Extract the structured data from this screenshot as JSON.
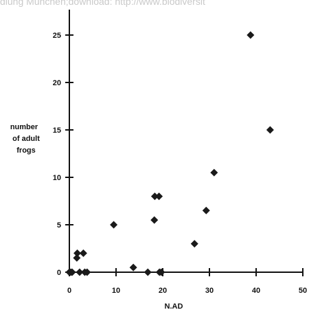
{
  "watermark": "dlung München;download: http://www.biodiversit",
  "chart_data": {
    "type": "scatter",
    "title": "",
    "xlabel": "N.AD",
    "ylabel_lines": [
      "number",
      "of adult",
      "frogs"
    ],
    "xlim": [
      0,
      50
    ],
    "ylim": [
      0,
      27
    ],
    "x_ticks": [
      0,
      10,
      20,
      30,
      40,
      50
    ],
    "y_ticks": [
      0,
      5,
      10,
      15,
      20,
      25
    ],
    "grid": false,
    "marker": "diamond",
    "marker_color": "#1a1a1a",
    "points": [
      {
        "x": 0,
        "y": 0
      },
      {
        "x": 0.3,
        "y": 0
      },
      {
        "x": 0.6,
        "y": 0
      },
      {
        "x": 1.6,
        "y": 1.5
      },
      {
        "x": 1.7,
        "y": 2
      },
      {
        "x": 2.2,
        "y": 0
      },
      {
        "x": 3.0,
        "y": 2
      },
      {
        "x": 3.3,
        "y": 0
      },
      {
        "x": 3.8,
        "y": 0
      },
      {
        "x": 9.5,
        "y": 5
      },
      {
        "x": 13.7,
        "y": 0.5
      },
      {
        "x": 16.8,
        "y": 0
      },
      {
        "x": 18.2,
        "y": 5.5
      },
      {
        "x": 18.3,
        "y": 8
      },
      {
        "x": 19.2,
        "y": 8
      },
      {
        "x": 19.3,
        "y": 0
      },
      {
        "x": 19.7,
        "y": 0
      },
      {
        "x": 26.8,
        "y": 3
      },
      {
        "x": 29.3,
        "y": 6.5
      },
      {
        "x": 31.0,
        "y": 10.5
      },
      {
        "x": 38.8,
        "y": 25
      },
      {
        "x": 43.0,
        "y": 15
      }
    ]
  }
}
